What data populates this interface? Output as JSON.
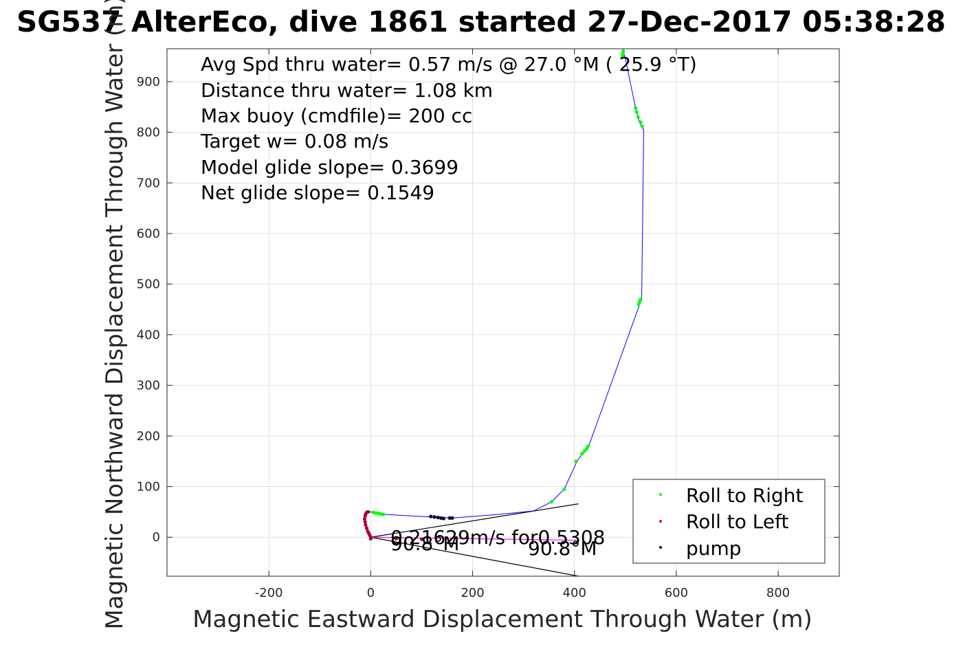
{
  "chart_data": {
    "type": "line",
    "title": "SG537 AlterEco, dive 1861 started 27-Dec-2017 05:38:28",
    "xlabel": "Magnetic Eastward Displacement Through Water (m)",
    "ylabel": "Magnetic Northward Displacement Through Water (m)",
    "xlim": [
      -400,
      920
    ],
    "ylim": [
      -77,
      965
    ],
    "xticks": [
      -200,
      0,
      200,
      400,
      600,
      800
    ],
    "xtick_labels": [
      "-200",
      "0",
      "200",
      "400",
      "600",
      "800"
    ],
    "yticks": [
      0,
      100,
      200,
      300,
      400,
      500,
      600,
      700,
      800,
      900
    ],
    "ytick_labels": [
      "0",
      "100",
      "200",
      "300",
      "400",
      "500",
      "600",
      "700",
      "800",
      "900"
    ],
    "grid": true,
    "legend_position": "bottom-right",
    "annotations": [
      "Avg Spd thru water=  0.57 m/s @  27.0 °M ( 25.9 °T)",
      "Distance thru water=  1.08 km",
      "Max buoy (cmdfile)= 200 cc",
      "Target w= 0.08 m/s",
      "Model glide slope= 0.3699",
      "Net glide slope= 0.1549"
    ],
    "current_label": "0.21629m/s for0.5308",
    "heading_labels": [
      "90.8°M",
      "90.8°M"
    ],
    "series": [
      {
        "name": "track",
        "color": "#0000ff",
        "x": [
          0,
          -3,
          -8,
          -12,
          -10,
          -5,
          2,
          10,
          30,
          80,
          120,
          160,
          250,
          320,
          355,
          380,
          405,
          420,
          428,
          528,
          532,
          536,
          528,
          520,
          500,
          495
        ],
        "y": [
          0,
          5,
          15,
          30,
          45,
          50,
          50,
          47,
          45,
          42,
          40,
          38,
          45,
          52,
          70,
          95,
          150,
          172,
          180,
          460,
          470,
          805,
          818,
          848,
          945,
          965
        ]
      }
    ],
    "legend": [
      {
        "label": "Roll to Right",
        "color": "#00ff00"
      },
      {
        "label": "Roll to Left",
        "color": "#ff0000"
      },
      {
        "label": "pump",
        "color": "#000000"
      }
    ],
    "marker_groups": [
      {
        "role": "roll-right",
        "color": "#00ff00",
        "x": [
          5,
          10,
          15,
          20,
          25,
          355,
          380,
          403,
          415,
          420,
          424,
          427,
          526,
          528,
          530,
          520,
          522,
          525,
          530,
          533,
          494,
          495,
          496
        ],
        "y": [
          49,
          48,
          47,
          46,
          45,
          70,
          95,
          150,
          165,
          170,
          175,
          180,
          460,
          465,
          470,
          848,
          840,
          830,
          820,
          812,
          950,
          955,
          960
        ]
      },
      {
        "role": "roll-left",
        "color": "#aa0033",
        "x": [
          0,
          -2,
          -4,
          -6,
          -8,
          -10,
          -11,
          -12,
          -11,
          -10,
          -8,
          -5,
          0,
          50,
          100
        ],
        "y": [
          0,
          4,
          8,
          12,
          18,
          24,
          30,
          36,
          42,
          46,
          49,
          50,
          -3,
          -3,
          -4
        ]
      },
      {
        "role": "pump",
        "color": "#000033",
        "x": [
          118,
          125,
          132,
          138,
          143,
          155,
          160
        ],
        "y": [
          41,
          40,
          39,
          38,
          37,
          38,
          38
        ]
      }
    ],
    "extra_lines": [
      {
        "role": "heading-wedge-upper",
        "color": "#000000",
        "x": [
          0,
          408
        ],
        "y": [
          0,
          66
        ]
      },
      {
        "role": "heading-wedge-lower",
        "color": "#000000",
        "x": [
          0,
          408
        ],
        "y": [
          0,
          -77
        ]
      },
      {
        "role": "current-vector",
        "color": "#ff00ff",
        "x": [
          0,
          405
        ],
        "y": [
          0,
          -6
        ]
      }
    ]
  }
}
